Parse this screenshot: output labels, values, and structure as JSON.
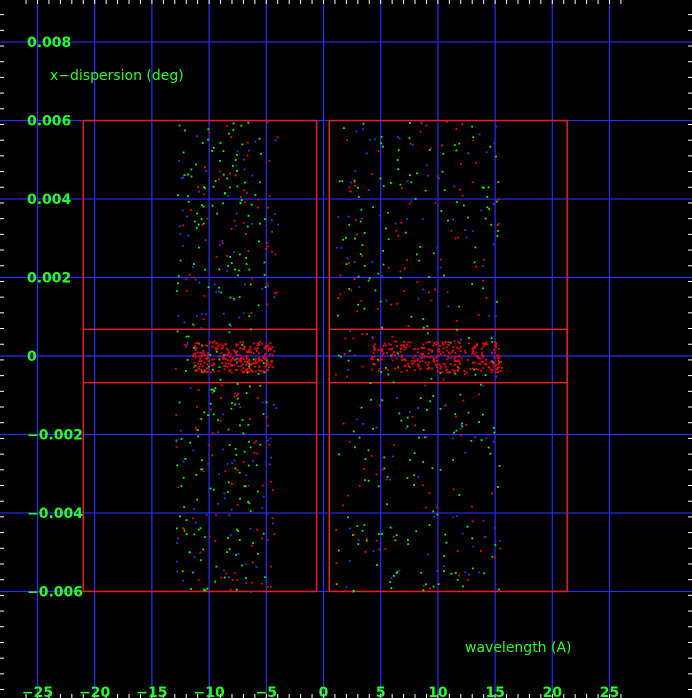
{
  "chart_data": {
    "type": "scatter",
    "title": "",
    "xlabel": "wavelength (A)",
    "ylabel": "x−dispersion (deg)",
    "xlim": [
      -26,
      26
    ],
    "ylim": [
      -0.0085,
      0.009
    ],
    "grid": true,
    "x_ticks": [
      -25,
      -20,
      -15,
      -10,
      -5,
      0,
      5,
      10,
      15,
      20,
      25
    ],
    "y_ticks": [
      0.008,
      0.006,
      0.004,
      0.002,
      0,
      -0.002,
      -0.004,
      -0.006
    ],
    "y_tick_labels": [
      "0.008",
      "0.006",
      "0.004",
      "0.002",
      "0",
      "−0.002",
      "−0.004",
      "−0.006"
    ],
    "x_tick_labels": [
      "−25",
      "−20",
      "−15",
      "−10",
      "−5",
      "0",
      "5",
      "10",
      "15",
      "20",
      "25"
    ],
    "boxes": [
      {
        "x0": -21,
        "x1": -0.6,
        "y0": -0.006,
        "y1": 0.006
      },
      {
        "x0": -21,
        "x1": -0.6,
        "y0": -0.00068,
        "y1": 0.00068
      },
      {
        "x0": 0.5,
        "x1": 21.3,
        "y0": -0.006,
        "y1": 0.006
      },
      {
        "x0": 0.5,
        "x1": 21.3,
        "y0": -0.00068,
        "y1": 0.00068
      }
    ],
    "point_clusters": [
      {
        "color": "#00ff00",
        "n": 230,
        "x": [
          -13,
          -5
        ],
        "y": [
          -0.006,
          0.006
        ]
      },
      {
        "color": "#ff0000",
        "n": 130,
        "x": [
          -13,
          -4
        ],
        "y": [
          -0.006,
          0.006
        ]
      },
      {
        "color": "#3030ff",
        "n": 110,
        "x": [
          -13,
          -4
        ],
        "y": [
          -0.006,
          0.006
        ]
      },
      {
        "color": "#ff0000",
        "n": 260,
        "x": [
          -11.5,
          -4.5
        ],
        "y": [
          -0.0004,
          0.0004
        ]
      },
      {
        "color": "#00ff00",
        "n": 230,
        "x": [
          1,
          15.5
        ],
        "y": [
          -0.006,
          0.006
        ]
      },
      {
        "color": "#ff0000",
        "n": 130,
        "x": [
          1,
          15.5
        ],
        "y": [
          -0.006,
          0.006
        ]
      },
      {
        "color": "#3030ff",
        "n": 110,
        "x": [
          1,
          15.5
        ],
        "y": [
          -0.006,
          0.006
        ]
      },
      {
        "color": "#ff0000",
        "n": 300,
        "x": [
          4,
          15.5
        ],
        "y": [
          -0.0004,
          0.0004
        ]
      }
    ],
    "colors": {
      "background": "#000000",
      "grid": "#2b2bff",
      "box": "#e02020",
      "text": "#22ff22"
    }
  }
}
